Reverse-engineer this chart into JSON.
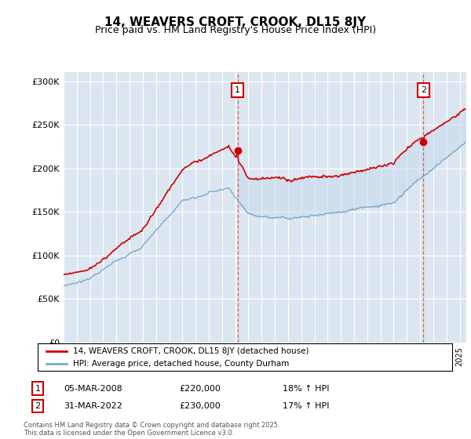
{
  "title": "14, WEAVERS CROFT, CROOK, DL15 8JY",
  "subtitle": "Price paid vs. HM Land Registry's House Price Index (HPI)",
  "legend_line1": "14, WEAVERS CROFT, CROOK, DL15 8JY (detached house)",
  "legend_line2": "HPI: Average price, detached house, County Durham",
  "marker1_date": "05-MAR-2008",
  "marker1_price": "£220,000",
  "marker1_hpi": "18% ↑ HPI",
  "marker2_date": "31-MAR-2022",
  "marker2_price": "£230,000",
  "marker2_hpi": "17% ↑ HPI",
  "footer": "Contains HM Land Registry data © Crown copyright and database right 2025.\nThis data is licensed under the Open Government Licence v3.0.",
  "ylim": [
    0,
    310000
  ],
  "yticks": [
    0,
    50000,
    100000,
    150000,
    200000,
    250000,
    300000
  ],
  "ytick_labels": [
    "£0",
    "£50K",
    "£100K",
    "£150K",
    "£200K",
    "£250K",
    "£300K"
  ],
  "plot_bg_color": "#dce6f0",
  "shade_bg_color": "#c5d8ee",
  "red_line_color": "#cc0000",
  "blue_line_color": "#7aaacf",
  "marker1_x_year": 2008.17,
  "marker2_x_year": 2022.25,
  "xmin": 1995.0,
  "xmax": 2025.5
}
